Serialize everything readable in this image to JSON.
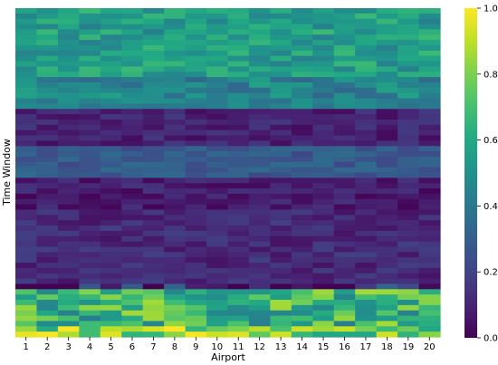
{
  "chart_data": {
    "type": "heatmap",
    "xlabel": "Airport",
    "ylabel": "Time Window",
    "x_categories": [
      "1",
      "2",
      "3",
      "4",
      "5",
      "6",
      "7",
      "8",
      "9",
      "10",
      "11",
      "12",
      "13",
      "14",
      "15",
      "16",
      "17",
      "18",
      "19",
      "20"
    ],
    "rows": 62,
    "row_profile": [
      {
        "from": 0,
        "to": 21,
        "level": 0.55
      },
      {
        "from": 21,
        "to": 31,
        "level": 0.45
      },
      {
        "from": 31,
        "to": 42,
        "level": 0.1
      },
      {
        "from": 42,
        "to": 52,
        "level": 0.28
      },
      {
        "from": 52,
        "to": 62,
        "level": 0.08
      },
      {
        "from": 62,
        "to": 85,
        "level": 0.12
      },
      {
        "from": 85,
        "to": 96,
        "level": 0.65
      },
      {
        "from": 96,
        "to": 100,
        "level": 0.8
      }
    ],
    "colorbar": {
      "colormap": "viridis",
      "range": [
        0.0,
        1.0
      ],
      "ticks": [
        "0.0",
        "0.2",
        "0.4",
        "0.6",
        "0.8",
        "1.0"
      ]
    }
  }
}
